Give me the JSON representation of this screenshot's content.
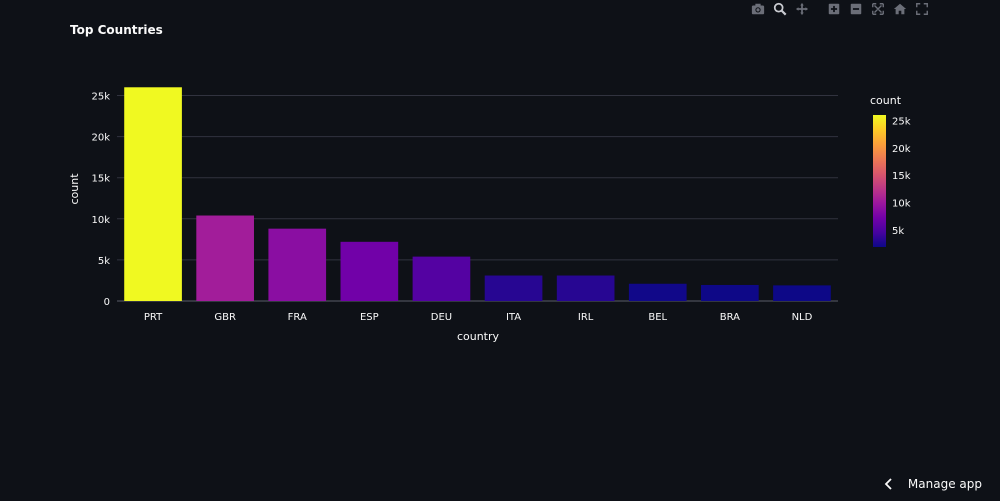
{
  "modebar": {
    "icons": [
      "camera-icon",
      "zoom-icon",
      "pan-icon",
      "zoom-in-icon",
      "zoom-out-icon",
      "autoscale-icon",
      "home-icon",
      "fullscreen-icon"
    ]
  },
  "footer": {
    "manage_label": "Manage app"
  },
  "colors": {
    "background": "#0e1117",
    "grid": "#31333f",
    "text": "#fafafa",
    "colorscale": [
      "#0d0887",
      "#46039f",
      "#7201a8",
      "#9c179e",
      "#bd3786",
      "#d8576b",
      "#ed7953",
      "#fb9f3a",
      "#fdca26",
      "#f0f921"
    ]
  },
  "chart_data": {
    "type": "bar",
    "title": "Top Countries",
    "xlabel": "country",
    "ylabel": "count",
    "categories": [
      "PRT",
      "GBR",
      "FRA",
      "ESP",
      "DEU",
      "ITA",
      "IRL",
      "BEL",
      "BRA",
      "NLD"
    ],
    "values": [
      26000,
      10400,
      8800,
      7200,
      5400,
      3100,
      3100,
      2100,
      1950,
      1900
    ],
    "ylim": [
      0,
      26000
    ],
    "yticks": [
      0,
      5000,
      10000,
      15000,
      20000,
      25000
    ],
    "ytick_labels": [
      "0",
      "5k",
      "10k",
      "15k",
      "20k",
      "25k"
    ],
    "colorbar": {
      "title": "count",
      "range": [
        1900,
        26000
      ],
      "ticks": [
        5000,
        10000,
        15000,
        20000,
        25000
      ],
      "tick_labels": [
        "5k",
        "10k",
        "15k",
        "20k",
        "25k"
      ]
    },
    "grid": true
  }
}
